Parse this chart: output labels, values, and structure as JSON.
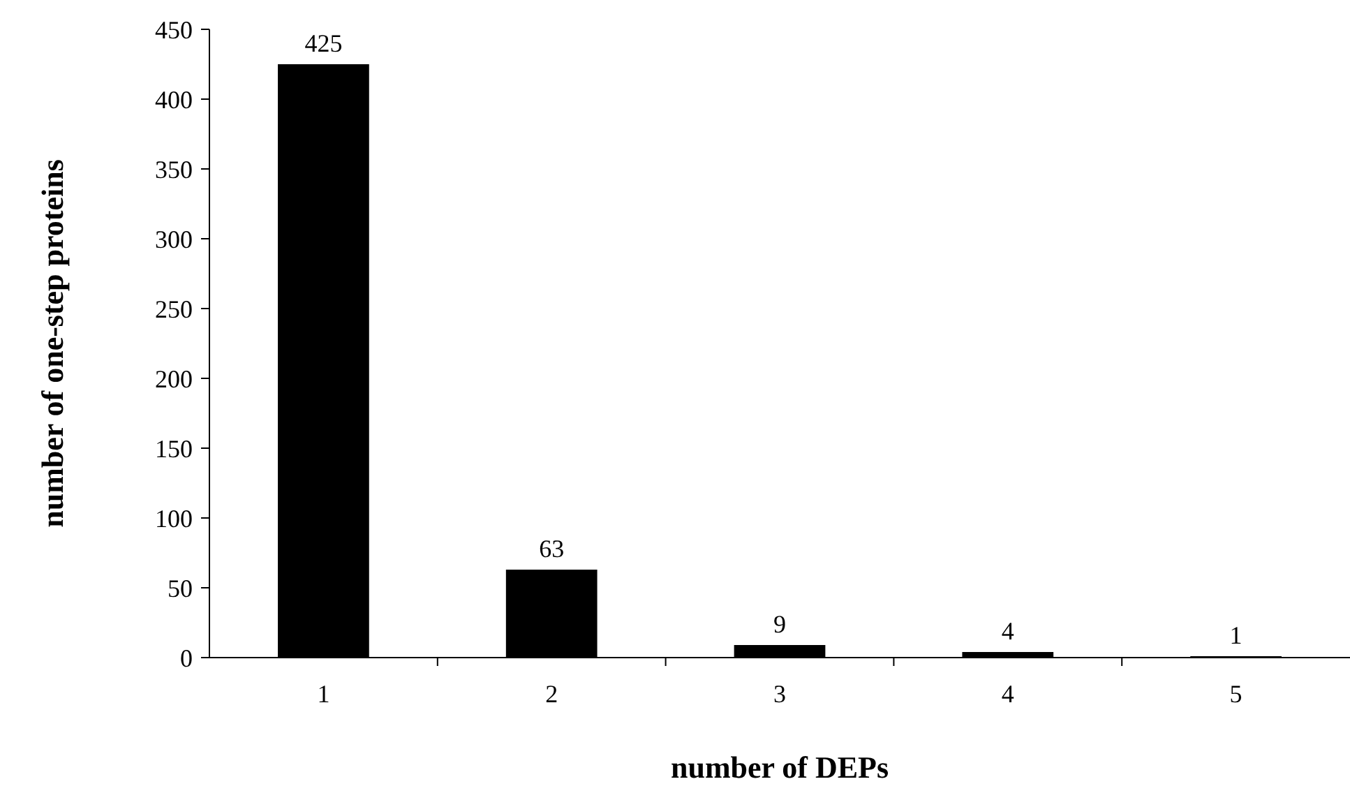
{
  "chart_data": {
    "type": "bar",
    "xlabel": "number of DEPs",
    "ylabel": "number of one-step proteins",
    "categories": [
      "1",
      "2",
      "3",
      "4",
      "5"
    ],
    "values": [
      425,
      63,
      9,
      4,
      1
    ],
    "color": "#000000",
    "ylim": [
      0,
      450
    ],
    "yticks": [
      0,
      50,
      100,
      150,
      200,
      250,
      300,
      350,
      400,
      450
    ],
    "grid": false,
    "data_labels": true
  }
}
